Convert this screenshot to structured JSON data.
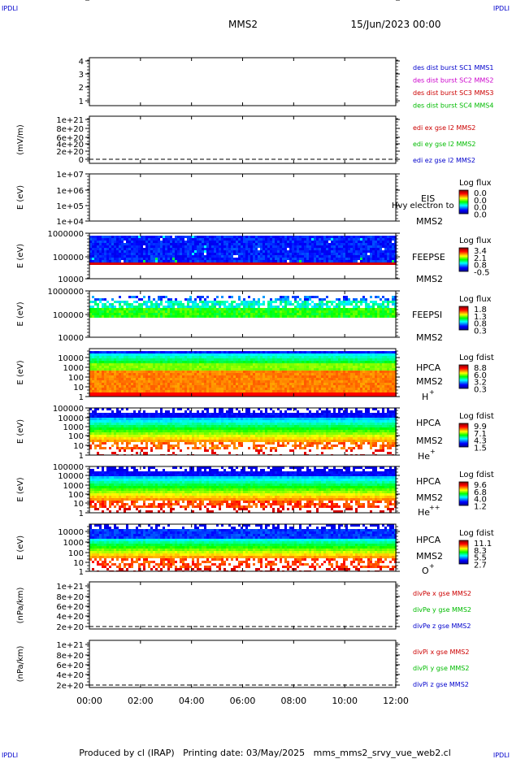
{
  "header": {
    "corner_left": "IPDLI",
    "corner_right": "IPDLI",
    "mission": "MMS2",
    "datetime": "15/Jun/2023 00:00"
  },
  "footer": {
    "corner_left": "IPDLI",
    "corner_right": "IPDLI",
    "credit": "Produced by cl (IRAP)   Printing date: 03/May/2025   mms_mms2_srvy_vue_web2.cl"
  },
  "chart_data": [
    {
      "id": "p1",
      "type": "line",
      "ytick_labels": [
        "4",
        "3",
        "2",
        "1"
      ],
      "ylabel": "",
      "legend": [
        {
          "text": "des dist burst SC1 MMS1",
          "color": "#0000cc"
        },
        {
          "text": "des dist burst SC2 MMS2",
          "color": "#cc00cc"
        },
        {
          "text": "des dist burst SC3 MMS3",
          "color": "#cc0000"
        },
        {
          "text": "des dist burst SC4 MMS4",
          "color": "#00bb00"
        }
      ],
      "series": []
    },
    {
      "id": "p2",
      "type": "line",
      "ytick_labels": [
        "1e+21",
        "8e+20",
        "6e+20",
        "4e+20",
        "2e+20",
        "0"
      ],
      "ylabel": "(mV/m)",
      "legend": [
        {
          "text": "edi ex gse l2 MMS2",
          "color": "#cc0000"
        },
        {
          "text": "edi ey gse l2 MMS2",
          "color": "#00bb00"
        },
        {
          "text": "edi ez gse l2 MMS2",
          "color": "#0000cc"
        }
      ],
      "series": []
    },
    {
      "id": "p3",
      "type": "heatmap",
      "ytick_labels": [
        "1e+07",
        "1e+06",
        "1e+05",
        "1e+04"
      ],
      "ylabel": "E (eV)",
      "instrument": "EIS",
      "spacecraft": "MMS2",
      "overlay_text": "Hvy electron to",
      "colorbar": {
        "title": "Log flux",
        "labels": [
          "0.0",
          "0.0",
          "0.0",
          "0.0"
        ]
      }
    },
    {
      "id": "p4",
      "type": "heatmap",
      "ytick_labels": [
        "1000000",
        "100000",
        "10000"
      ],
      "ylabel": "E (eV)",
      "instrument": "FEEPSE",
      "spacecraft": "MMS2",
      "colorbar": {
        "title": "Log flux",
        "labels": [
          "3.4",
          "2.1",
          "0.8",
          "-0.5"
        ]
      }
    },
    {
      "id": "p5",
      "type": "heatmap",
      "ytick_labels": [
        "1000000",
        "100000",
        "10000"
      ],
      "ylabel": "E (eV)",
      "instrument": "FEEPSI",
      "spacecraft": "MMS2",
      "colorbar": {
        "title": "Log flux",
        "labels": [
          "1.8",
          "1.3",
          "0.8",
          "0.3"
        ]
      }
    },
    {
      "id": "p6",
      "type": "heatmap",
      "ytick_labels": [
        "10000",
        "1000",
        "100",
        "10",
        "1"
      ],
      "ylabel": "E (eV)",
      "instrument": "HPCA",
      "spacecraft": "MMS2",
      "species": "H",
      "species_sup": "+",
      "colorbar": {
        "title": "Log fdist",
        "labels": [
          "8.8",
          "6.0",
          "3.2",
          "0.3"
        ]
      }
    },
    {
      "id": "p7",
      "type": "heatmap",
      "ytick_labels": [
        "100000",
        "10000",
        "1000",
        "100",
        "10",
        "1"
      ],
      "ylabel": "E (eV)",
      "instrument": "HPCA",
      "spacecraft": "MMS2",
      "species": "He",
      "species_sup": "+",
      "colorbar": {
        "title": "Log fdist",
        "labels": [
          "9.9",
          "7.1",
          "4.3",
          "1.5"
        ]
      }
    },
    {
      "id": "p8",
      "type": "heatmap",
      "ytick_labels": [
        "100000",
        "10000",
        "1000",
        "100",
        "10",
        "1"
      ],
      "ylabel": "E (eV)",
      "instrument": "HPCA",
      "spacecraft": "MMS2",
      "species": "He",
      "species_sup": "++",
      "colorbar": {
        "title": "Log fdist",
        "labels": [
          "9.6",
          "6.8",
          "4.0",
          "1.2"
        ]
      }
    },
    {
      "id": "p9",
      "type": "heatmap",
      "ytick_labels": [
        "10000",
        "1000",
        "100",
        "10",
        "1"
      ],
      "ylabel": "E (eV)",
      "instrument": "HPCA",
      "spacecraft": "MMS2",
      "species": "O",
      "species_sup": "+",
      "colorbar": {
        "title": "Log fdist",
        "labels": [
          "11.1",
          "8.3",
          "5.5",
          "2.7"
        ]
      }
    },
    {
      "id": "p10",
      "type": "line",
      "ytick_labels": [
        "1e+21",
        "8e+20",
        "6e+20",
        "4e+20",
        "2e+20",
        "0"
      ],
      "ylabel": "(nPa/km)",
      "legend": [
        {
          "text": "divPe x gse MMS2",
          "color": "#cc0000"
        },
        {
          "text": "divPe y gse MMS2",
          "color": "#00bb00"
        },
        {
          "text": "divPe z gse MMS2",
          "color": "#0000cc"
        }
      ],
      "series": []
    },
    {
      "id": "p11",
      "type": "line",
      "ytick_labels": [
        "1e+21",
        "8e+20",
        "6e+20",
        "4e+20",
        "2e+20",
        "0"
      ],
      "ylabel": "(nPa/km)",
      "legend": [
        {
          "text": "divPi x gse MMS2",
          "color": "#cc0000"
        },
        {
          "text": "divPi y gse MMS2",
          "color": "#00bb00"
        },
        {
          "text": "divPi z gse MMS2",
          "color": "#0000cc"
        }
      ],
      "series": []
    }
  ],
  "time_axis": {
    "tick_labels": [
      "00:00",
      "02:00",
      "04:00",
      "06:00",
      "08:00",
      "10:00",
      "12:00"
    ]
  }
}
